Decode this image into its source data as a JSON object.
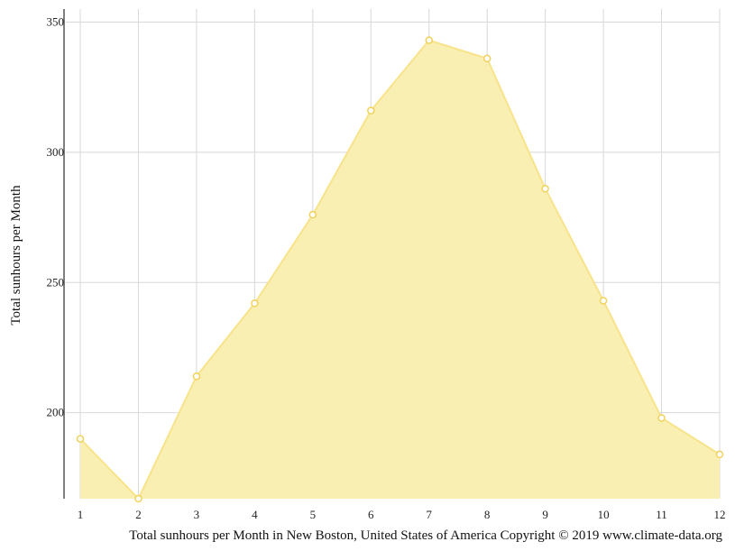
{
  "chart_data": {
    "type": "area",
    "x": [
      1,
      2,
      3,
      4,
      5,
      6,
      7,
      8,
      9,
      10,
      11,
      12
    ],
    "series": [
      {
        "values": [
          190,
          167,
          214,
          242,
          276,
          316,
          343,
          336,
          286,
          243,
          198,
          184
        ]
      }
    ],
    "ylabel": "Total sunhours per Month",
    "xlabel": "",
    "yticks": [
      200,
      250,
      300,
      350
    ],
    "ylim": [
      167,
      355
    ],
    "xlim": [
      1,
      12
    ],
    "grid": true,
    "legend": "none",
    "colors": {
      "fill": "#faeeae",
      "line": "#f7e38a",
      "marker_fill": "#ffffff",
      "marker_stroke": "#f0d25a",
      "grid": "#d8d8d8",
      "axis": "#555555"
    }
  },
  "caption": "Total sunhours per Month in New Boston, United States of America Copyright © 2019 www.climate-data.org"
}
